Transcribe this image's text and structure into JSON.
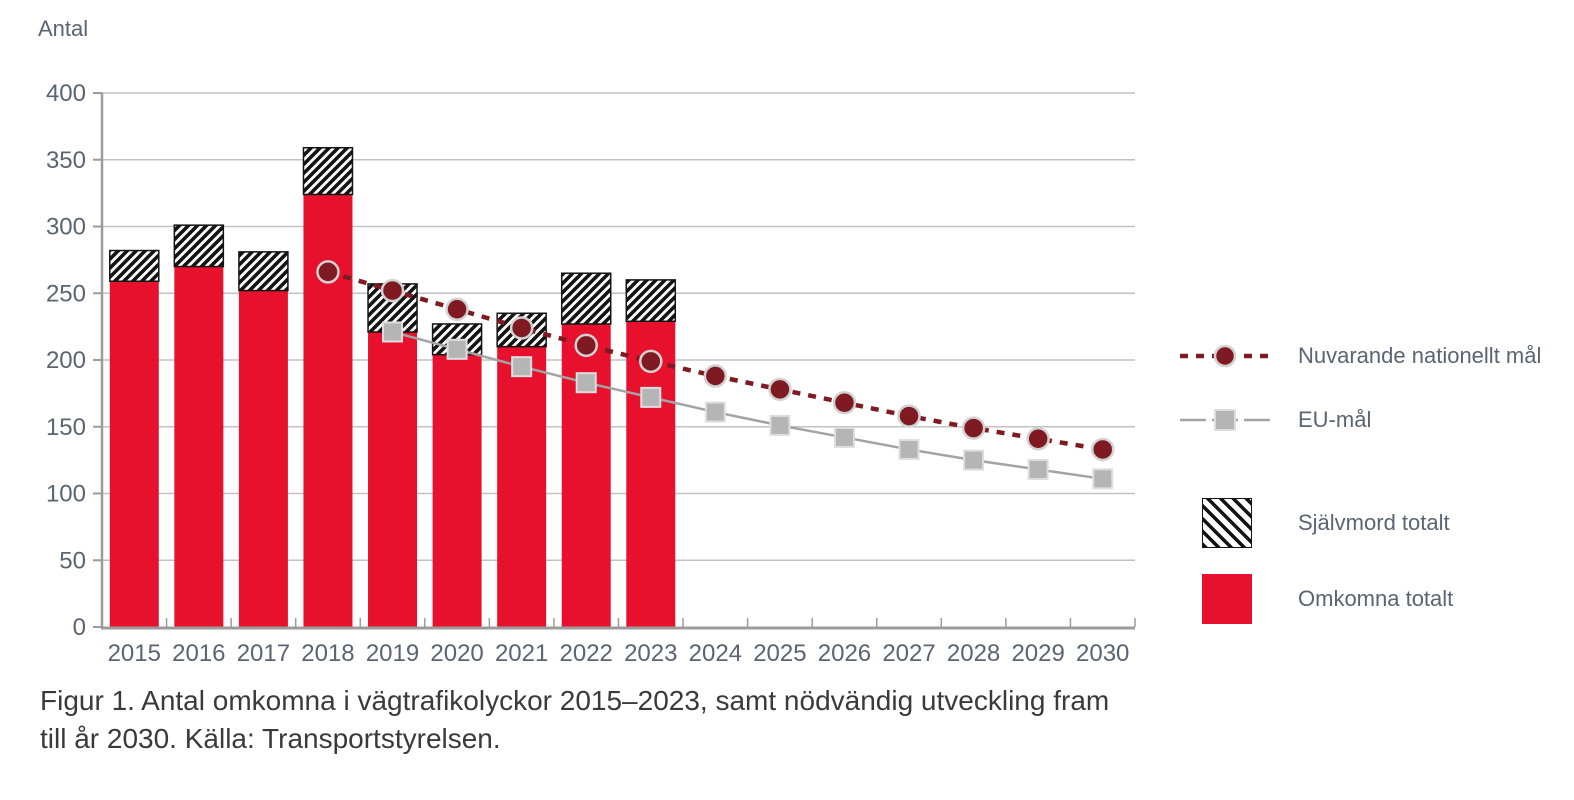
{
  "page": {
    "caption_line1": "Figur 1. Antal omkomna i vägtrafikolyckor 2015–2023, samt nödvändig utveckling fram",
    "caption_line2": "till år 2030. Källa: Transportstyrelsen."
  },
  "colors": {
    "bar_red": "#e8112d",
    "national_line": "#7f1a22",
    "eu_line": "#a3a3a3",
    "eu_marker": "#b5b5b5",
    "hatch_black": "#141414",
    "grid": "#c2c2c2",
    "axis": "#9b9b9b",
    "axis_text": "#5a6472",
    "caption_text": "#3a3a3a"
  },
  "chart_data": {
    "type": "bar",
    "subtype": "stacked-bars-with-target-lines",
    "title": "Figur 1. Antal omkomna i vägtrafikolyckor 2015–2023, samt nödvändig utveckling fram till år 2030",
    "source": "Källa: Transportstyrelsen",
    "ylabel": "Antal",
    "xlabel": "",
    "ylim": [
      0,
      400
    ],
    "ytick_step": 50,
    "grid": true,
    "legend_position": "right",
    "categories": [
      "2015",
      "2016",
      "2017",
      "2018",
      "2019",
      "2020",
      "2021",
      "2022",
      "2023",
      "2024",
      "2025",
      "2026",
      "2027",
      "2028",
      "2029",
      "2030"
    ],
    "series": [
      {
        "name": "Omkomna totalt",
        "type": "bar",
        "stack": "totalt",
        "color": "#e8112d",
        "values": [
          259,
          270,
          252,
          324,
          221,
          204,
          210,
          227,
          229,
          null,
          null,
          null,
          null,
          null,
          null,
          null
        ]
      },
      {
        "name": "Självmord totalt",
        "type": "bar",
        "stack": "totalt",
        "style": "hatched",
        "color": "#141414",
        "values": [
          23,
          31,
          29,
          35,
          36,
          23,
          25,
          38,
          31,
          null,
          null,
          null,
          null,
          null,
          null,
          null
        ]
      },
      {
        "name": "Nuvarande nationellt mål",
        "type": "line",
        "linestyle": "dashed",
        "marker": "circle",
        "color": "#7f1a22",
        "marker_color": "#7f1a22",
        "values": [
          null,
          null,
          null,
          266,
          252,
          238,
          224,
          211,
          199,
          188,
          178,
          168,
          158,
          149,
          141,
          133
        ]
      },
      {
        "name": "EU-mål",
        "type": "line",
        "linestyle": "solid",
        "marker": "square",
        "color": "#a3a3a3",
        "marker_color": "#b5b5b5",
        "values": [
          null,
          null,
          null,
          null,
          221,
          208,
          195,
          183,
          172,
          161,
          151,
          142,
          133,
          125,
          118,
          111
        ]
      }
    ]
  }
}
